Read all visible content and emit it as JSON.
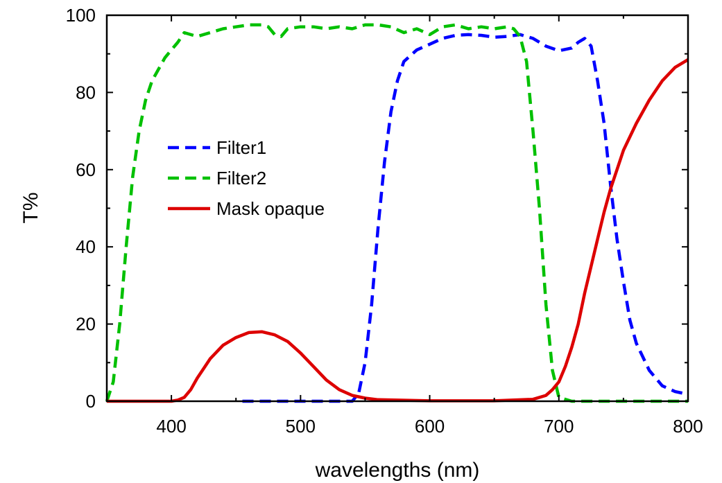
{
  "chart_data": {
    "type": "line",
    "title": "",
    "xlabel": "wavelengths (nm)",
    "ylabel": "T%",
    "xlim": [
      350,
      800
    ],
    "ylim": [
      0,
      100
    ],
    "x_ticks": [
      400,
      500,
      600,
      700,
      800
    ],
    "y_ticks": [
      0,
      20,
      40,
      60,
      80,
      100
    ],
    "grid": false,
    "legend_position": "left",
    "series": [
      {
        "name": "Filter1",
        "color": "#0000ff",
        "dash": "dashed",
        "x": [
          455,
          540,
          545,
          550,
          555,
          560,
          565,
          570,
          575,
          580,
          590,
          600,
          610,
          620,
          630,
          640,
          650,
          660,
          670,
          680,
          690,
          700,
          710,
          715,
          720,
          725,
          730,
          735,
          740,
          745,
          750,
          755,
          760,
          770,
          780,
          790,
          800
        ],
        "y": [
          0,
          0,
          2,
          10,
          25,
          45,
          62,
          75,
          83,
          88,
          91,
          92.5,
          94,
          94.8,
          95,
          94.8,
          94.3,
          94.5,
          95,
          94,
          92,
          90.8,
          91.5,
          93,
          94,
          92,
          83,
          72,
          56,
          42,
          31,
          21,
          15,
          8,
          4,
          2.5,
          1.8
        ]
      },
      {
        "name": "Filter2",
        "color": "#00c000",
        "dash": "dashed",
        "x": [
          350,
          355,
          360,
          365,
          370,
          375,
          380,
          385,
          390,
          395,
          400,
          405,
          410,
          415,
          420,
          430,
          440,
          450,
          460,
          470,
          475,
          480,
          485,
          490,
          500,
          510,
          520,
          530,
          540,
          550,
          560,
          570,
          580,
          590,
          600,
          610,
          620,
          630,
          640,
          650,
          660,
          665,
          670,
          675,
          680,
          685,
          690,
          695,
          700,
          710,
          720,
          800
        ],
        "y": [
          0,
          5,
          20,
          40,
          58,
          70,
          78,
          83,
          86,
          89,
          91,
          93,
          95.5,
          95,
          94.5,
          95.5,
          96.5,
          97,
          97.5,
          97.5,
          97,
          95,
          94.5,
          96.5,
          97,
          97,
          96.5,
          97,
          96.5,
          97.5,
          97.5,
          97,
          95.5,
          96.5,
          95,
          97,
          97.5,
          96.5,
          97,
          96.5,
          97,
          96.5,
          94.5,
          88,
          70,
          50,
          25,
          8,
          1,
          0,
          0,
          0
        ]
      },
      {
        "name": "Mask opaque",
        "color": "#dd0000",
        "dash": "solid",
        "x": [
          350,
          400,
          405,
          410,
          415,
          420,
          425,
          430,
          440,
          450,
          460,
          470,
          480,
          490,
          500,
          510,
          520,
          530,
          540,
          550,
          560,
          600,
          650,
          680,
          690,
          695,
          700,
          705,
          710,
          715,
          720,
          725,
          730,
          735,
          740,
          745,
          750,
          760,
          770,
          780,
          790,
          800
        ],
        "y": [
          0,
          0,
          0.3,
          1,
          3,
          6,
          8.5,
          11,
          14.5,
          16.5,
          17.8,
          18,
          17.2,
          15.5,
          12.5,
          9,
          5.5,
          3,
          1.5,
          0.8,
          0.4,
          0.1,
          0.1,
          0.5,
          1.5,
          3,
          5,
          9,
          14,
          20,
          28,
          35,
          42,
          49,
          55,
          60,
          65,
          72,
          78,
          83,
          86.5,
          88.5
        ]
      }
    ]
  }
}
